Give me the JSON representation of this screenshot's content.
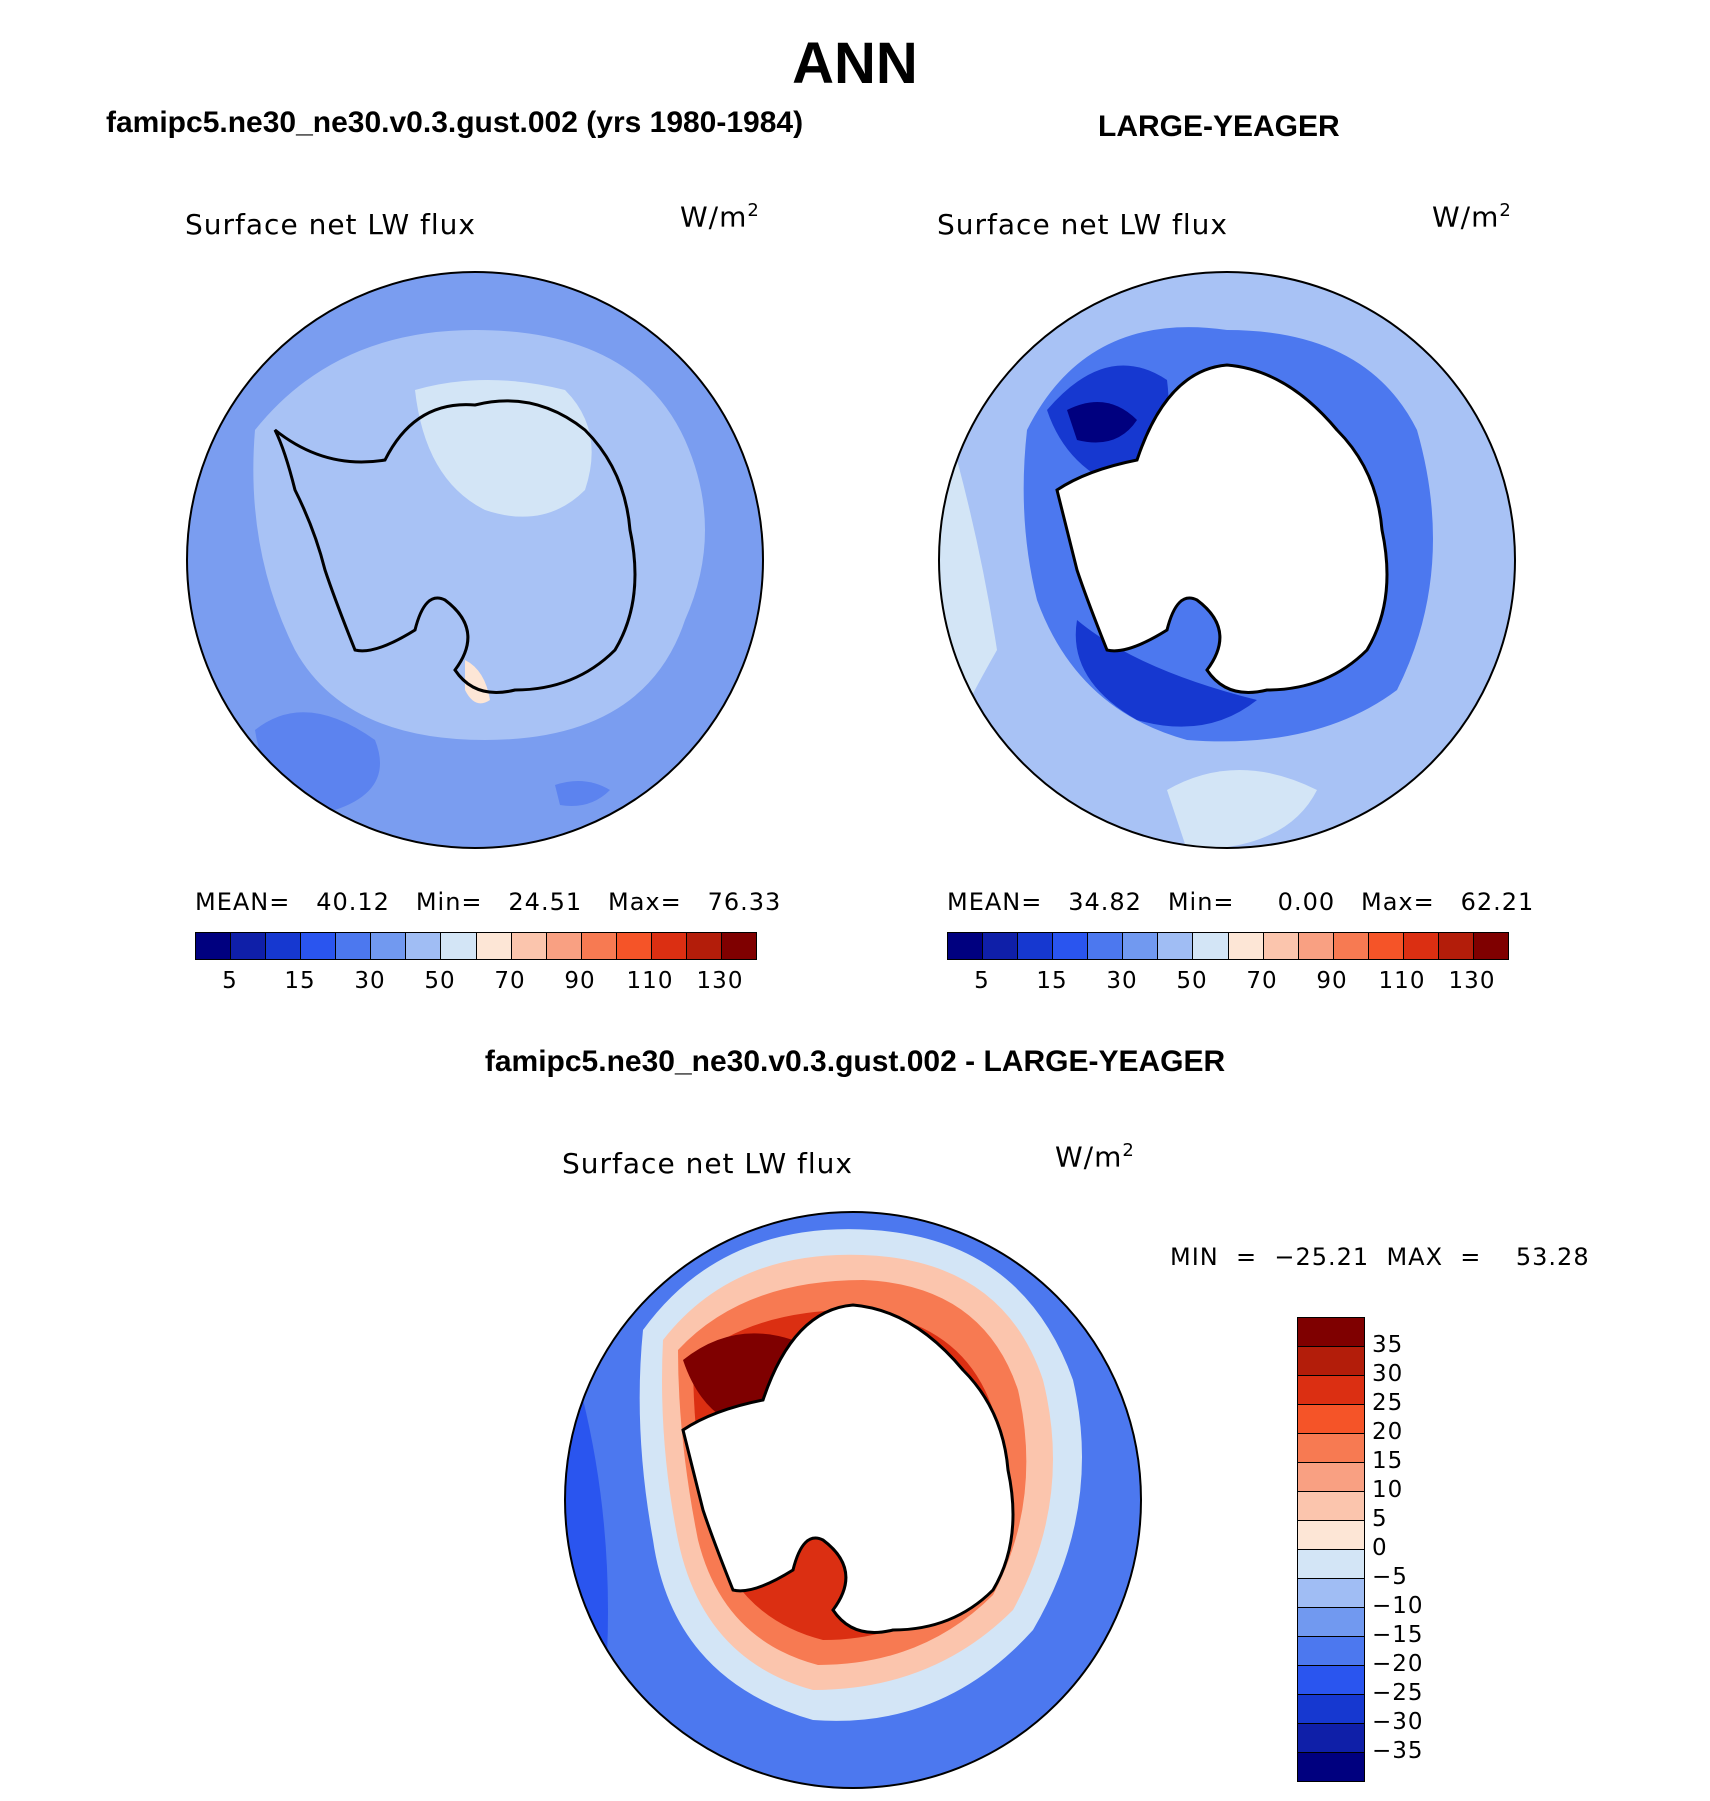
{
  "main_title": "ANN",
  "panel1": {
    "title": "famipc5.ne30_ne30.v0.3.gust.002 (yrs 1980-1984)",
    "variable": "Surface net LW flux",
    "units_base": "W/m",
    "units_exp": "2",
    "stats": "MEAN=   40.12   Min=   24.51   Max=   76.33"
  },
  "panel2": {
    "title": "LARGE-YEAGER",
    "variable": "Surface net LW flux",
    "units_base": "W/m",
    "units_exp": "2",
    "stats": "MEAN=   34.82   Min=     0.00   Max=   62.21"
  },
  "diff": {
    "title": "famipc5.ne30_ne30.v0.3.gust.002 - LARGE-YEAGER",
    "variable": "Surface net LW flux",
    "units_base": "W/m",
    "units_exp": "2",
    "minmax": "MIN  =  −25.21  MAX  =    53.28"
  },
  "abs_colorbar": {
    "colors": [
      "#00007f",
      "#0f1fa8",
      "#1638d0",
      "#2a55ef",
      "#4c78ef",
      "#7199f0",
      "#a0bdf4",
      "#d3e5f6",
      "#fde6d6",
      "#fbc5ad",
      "#f9a082",
      "#f77a52",
      "#f55428",
      "#db2f12",
      "#b31d0a",
      "#7f0000"
    ],
    "labels": [
      "5",
      "15",
      "30",
      "50",
      "70",
      "90",
      "110",
      "130"
    ]
  },
  "diff_colorbar": {
    "colors": [
      "#7f0000",
      "#b31d0a",
      "#db2f12",
      "#f55428",
      "#f77a52",
      "#f9a082",
      "#fbc5ad",
      "#fde6d6",
      "#d3e5f6",
      "#a0bdf4",
      "#7199f0",
      "#4c78ef",
      "#2a55ef",
      "#1638d0",
      "#0f1fa8",
      "#00007f"
    ],
    "labels": [
      "35",
      "30",
      "25",
      "20",
      "15",
      "10",
      "5",
      "0",
      "−5",
      "−10",
      "−15",
      "−20",
      "−25",
      "−30",
      "−35"
    ]
  },
  "map_colors": {
    "ocean_mid": "#7a9df0",
    "ocean_light": "#a8c2f5",
    "land_pale": "#d3e5f6",
    "deep_blue": "#1638d0",
    "navy": "#00007f",
    "warm_light": "#fbc5ad",
    "warm_mid": "#f77a52",
    "warm_dark": "#db2f12",
    "maroon": "#7f0000"
  }
}
